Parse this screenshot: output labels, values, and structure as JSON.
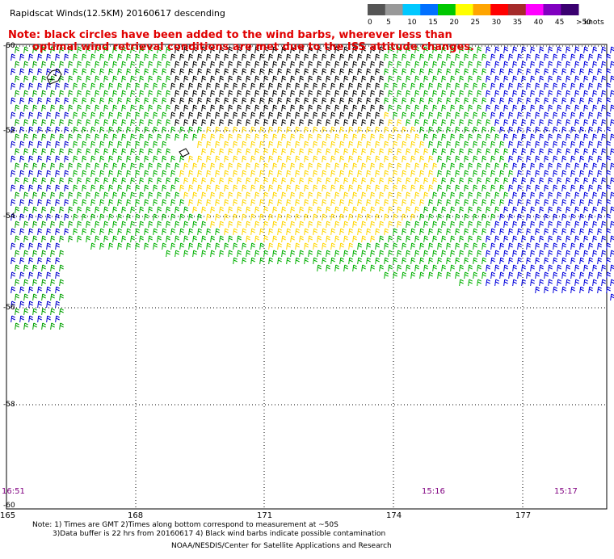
{
  "title": "Rapidscat Winds(12.5KM) 20160617 descending",
  "note_line1": "Note: black circles have been added to the wind barbs, wherever less than",
  "note_line2": "optimal wind retrieval conditions are met due to the ISS attitude changes.",
  "color_scale": {
    "labels": [
      "0",
      "5",
      "10",
      "15",
      "20",
      "25",
      "30",
      "35",
      "40",
      "45",
      ">50"
    ],
    "unit": "knots",
    "colors": [
      "#555555",
      "#999999",
      "#00c8ff",
      "#0070ff",
      "#00c800",
      "#ffff00",
      "#ffa500",
      "#ff0000",
      "#a52a2a",
      "#ff00ff",
      "#8000c0",
      "#3a0070"
    ]
  },
  "lat_labels": [
    "-50",
    "-52",
    "-54",
    "-56",
    "-58",
    "-60"
  ],
  "lon_labels": [
    "165",
    "168",
    "171",
    "174",
    "177"
  ],
  "time_labels": [
    "16:51",
    "15:16",
    "15:17"
  ],
  "footnote": {
    "line1": "Note: 1) Times are GMT 2)Times along bottom correspond to measurement at ~50S",
    "line2": "3)Data buffer is 22 hrs from 20160617 4) Black wind barbs indicate possible contamination",
    "line3": "NOAA/NESDIS/Center for Satellite Applications and Research"
  }
}
